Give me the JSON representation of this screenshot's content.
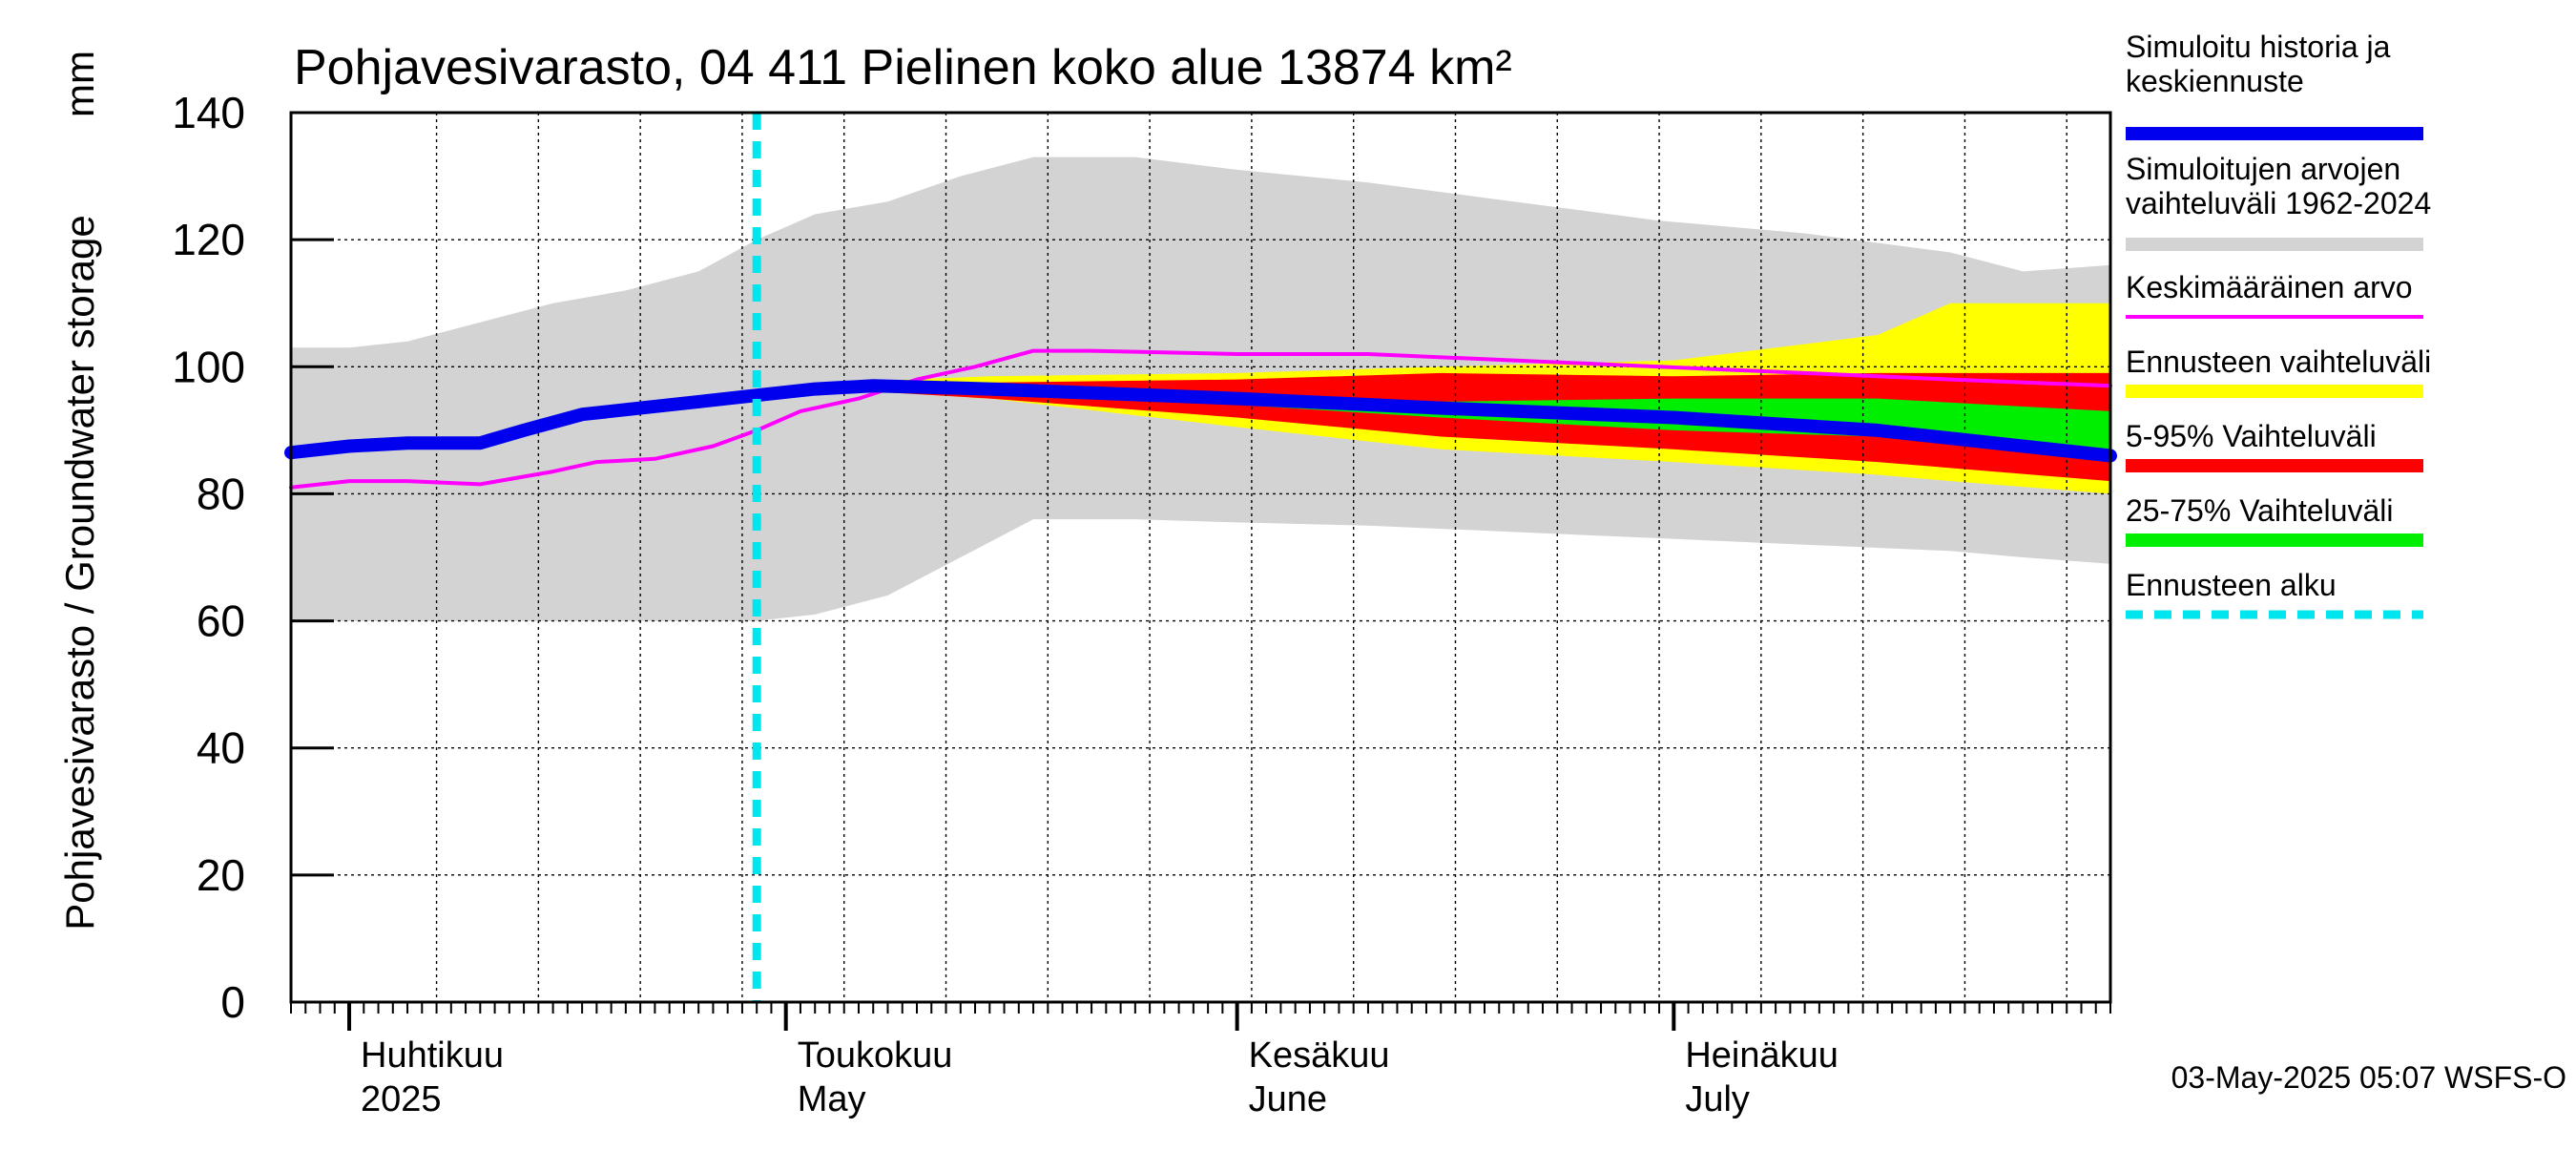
{
  "chart_data": {
    "type": "area",
    "title": "Pohjavesivarasto, 04 411 Pielinen koko alue 13874 km²",
    "ylabel": "Pohjavesivarasto / Groundwater storage",
    "yunit": "mm",
    "ylim": [
      0,
      140
    ],
    "yticks": [
      0,
      20,
      40,
      60,
      80,
      100,
      120,
      140
    ],
    "xlim": [
      "2025-03-28",
      "2025-07-31"
    ],
    "grid": true,
    "legend_position": "right",
    "x_axis_labels": [
      {
        "fi": "Huhtikuu",
        "en": "2025",
        "date": "2025-04-01"
      },
      {
        "fi": "Toukokuu",
        "en": "May",
        "date": "2025-05-01"
      },
      {
        "fi": "Kesäkuu",
        "en": "June",
        "date": "2025-06-01"
      },
      {
        "fi": "Heinäkuu",
        "en": "July",
        "date": "2025-07-01"
      }
    ],
    "forecast_start": "2025-04-29",
    "legend": [
      {
        "label_lines": [
          "Simuloitu historia ja",
          "keskiennuste"
        ],
        "color": "#0000ee",
        "style": "thick"
      },
      {
        "label_lines": [
          "Simuloitujen arvojen",
          "vaihteluväli 1962-2024"
        ],
        "color": "#d3d3d3",
        "style": "thick"
      },
      {
        "label_lines": [
          "Keskimääräinen arvo"
        ],
        "color": "#ff00ff",
        "style": "thin"
      },
      {
        "label_lines": [
          "Ennusteen vaihteluväli"
        ],
        "color": "#ffff00",
        "style": "thick"
      },
      {
        "label_lines": [
          "5-95% Vaihteluväli"
        ],
        "color": "#ff0000",
        "style": "thick"
      },
      {
        "label_lines": [
          "25-75% Vaihteluväli"
        ],
        "color": "#00ee00",
        "style": "thick"
      },
      {
        "label_lines": [
          "Ennusteen alku"
        ],
        "color": "#00e5ee",
        "style": "dashed"
      }
    ],
    "series": [
      {
        "name": "Simuloitujen arvojen vaihteluväli 1962-2024",
        "kind": "band",
        "color": "#d3d3d3",
        "x": [
          "2025-03-28",
          "2025-04-01",
          "2025-04-05",
          "2025-04-10",
          "2025-04-15",
          "2025-04-20",
          "2025-04-25",
          "2025-04-29",
          "2025-05-03",
          "2025-05-08",
          "2025-05-13",
          "2025-05-18",
          "2025-05-25",
          "2025-06-01",
          "2025-06-10",
          "2025-06-20",
          "2025-06-30",
          "2025-07-10",
          "2025-07-20",
          "2025-07-25",
          "2025-07-31"
        ],
        "lower": [
          60,
          60,
          60,
          60,
          60,
          60,
          60,
          60,
          61,
          64,
          70,
          76,
          76,
          75.5,
          75,
          74,
          73,
          72,
          71,
          70,
          69
        ],
        "upper": [
          103,
          103,
          104,
          107,
          110,
          112,
          115,
          120,
          124,
          126,
          130,
          133,
          133,
          131,
          129,
          126,
          123,
          121,
          118,
          115,
          116
        ]
      },
      {
        "name": "Ennusteen vaihteluväli",
        "kind": "band",
        "color": "#ffff00",
        "x": [
          "2025-05-04",
          "2025-05-15",
          "2025-06-01",
          "2025-06-15",
          "2025-07-01",
          "2025-07-15",
          "2025-07-20",
          "2025-07-31"
        ],
        "lower": [
          96.5,
          95,
          90.5,
          87,
          85,
          83,
          82,
          80
        ],
        "upper": [
          97.5,
          98.5,
          99,
          100,
          101,
          105,
          110,
          110
        ]
      },
      {
        "name": "5-95% Vaihteluväli",
        "kind": "band",
        "color": "#ff0000",
        "x": [
          "2025-05-04",
          "2025-05-15",
          "2025-06-01",
          "2025-06-15",
          "2025-07-01",
          "2025-07-15",
          "2025-07-31"
        ],
        "lower": [
          96.5,
          95,
          92,
          89,
          87,
          85,
          82
        ],
        "upper": [
          97,
          97.5,
          98,
          99,
          98.5,
          99,
          99
        ]
      },
      {
        "name": "25-75% Vaihteluväli",
        "kind": "band",
        "color": "#00ee00",
        "x": [
          "2025-05-04",
          "2025-05-15",
          "2025-06-01",
          "2025-06-15",
          "2025-07-01",
          "2025-07-15",
          "2025-07-31"
        ],
        "lower": [
          96.5,
          95.5,
          94,
          92,
          90,
          89,
          87
        ],
        "upper": [
          97,
          96.5,
          95.5,
          94.5,
          95,
          95,
          93
        ]
      },
      {
        "name": "Keskimääräinen arvo",
        "kind": "line",
        "color": "#ff00ff",
        "x": [
          "2025-03-28",
          "2025-04-01",
          "2025-04-05",
          "2025-04-10",
          "2025-04-15",
          "2025-04-18",
          "2025-04-22",
          "2025-04-26",
          "2025-04-29",
          "2025-05-02",
          "2025-05-06",
          "2025-05-10",
          "2025-05-14",
          "2025-05-18",
          "2025-05-22",
          "2025-06-01",
          "2025-06-10",
          "2025-06-20",
          "2025-06-30",
          "2025-07-10",
          "2025-07-20",
          "2025-07-31"
        ],
        "y": [
          81,
          82,
          82,
          81.5,
          83.5,
          85,
          85.5,
          87.5,
          90,
          93,
          95,
          98,
          100,
          102.5,
          102.5,
          102,
          102,
          101,
          100,
          99,
          98,
          97
        ]
      },
      {
        "name": "Simuloitu historia ja keskiennuste",
        "kind": "line",
        "color": "#0000ee",
        "x": [
          "2025-03-28",
          "2025-04-01",
          "2025-04-05",
          "2025-04-10",
          "2025-04-13",
          "2025-04-17",
          "2025-04-21",
          "2025-04-25",
          "2025-04-29",
          "2025-05-03",
          "2025-05-07",
          "2025-05-15",
          "2025-06-01",
          "2025-06-15",
          "2025-07-01",
          "2025-07-15",
          "2025-07-31"
        ],
        "y": [
          86.5,
          87.5,
          88,
          88,
          90,
          92.5,
          93.5,
          94.5,
          95.5,
          96.5,
          97,
          96.5,
          95,
          93.5,
          92,
          90,
          86
        ]
      }
    ]
  },
  "footer": {
    "timestamp": "03-May-2025 05:07 WSFS-O"
  }
}
